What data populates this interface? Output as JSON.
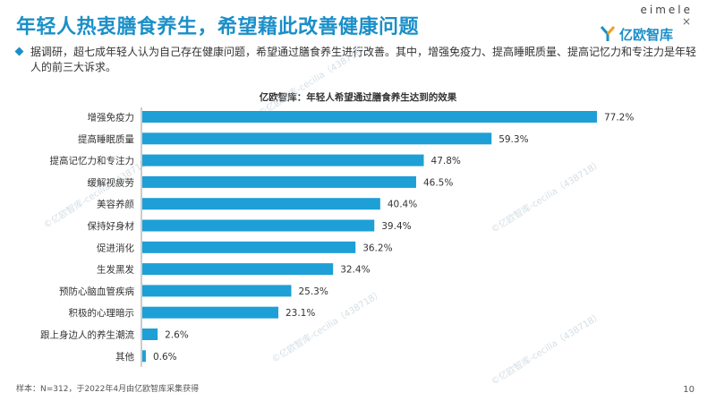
{
  "header": {
    "title": "年轻人热衷膳食养生，希望藉此改善健康问题",
    "brand_top": "eimele",
    "brand_x": "×",
    "brand_name": "亿欧智库"
  },
  "summary": {
    "text": "据调研，超七成年轻人认为自己存在健康问题，希望通过膳食养生进行改善。其中，增强免疫力、提高睡眠质量、提高记忆力和专注力是年轻人的前三大诉求。"
  },
  "chart_data": {
    "type": "bar",
    "orientation": "horizontal",
    "title": "亿欧智库：年轻人希望通过膳食养生达到的效果",
    "categories": [
      "增强免疫力",
      "提高睡眠质量",
      "提高记忆力和专注力",
      "缓解视疲劳",
      "美容养颜",
      "保持好身材",
      "促进消化",
      "生发黑发",
      "预防心脑血管疾病",
      "积极的心理暗示",
      "跟上身边人的养生潮流",
      "其他"
    ],
    "values": [
      77.2,
      59.3,
      47.8,
      46.5,
      40.4,
      39.4,
      36.2,
      32.4,
      25.3,
      23.1,
      2.6,
      0.6
    ],
    "value_labels": [
      "77.2%",
      "59.3%",
      "47.8%",
      "46.5%",
      "40.4%",
      "39.4%",
      "36.2%",
      "32.4%",
      "25.3%",
      "23.1%",
      "2.6%",
      "0.6%"
    ],
    "unit": "%",
    "bar_color": "#1e9fd6",
    "grid": false,
    "legend": "none"
  },
  "watermark": "©亿欧智库-cecilia（438718）",
  "footer": {
    "note": "样本：N=312，于2022年4月由亿欧智库采集获得",
    "page_number": "10"
  }
}
